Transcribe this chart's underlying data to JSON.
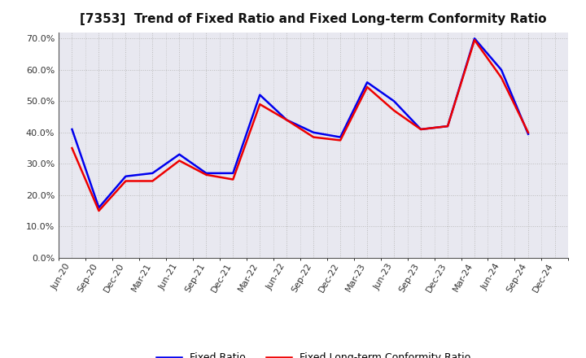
{
  "title": "[7353]  Trend of Fixed Ratio and Fixed Long-term Conformity Ratio",
  "x_labels": [
    "Jun-20",
    "Sep-20",
    "Dec-20",
    "Mar-21",
    "Jun-21",
    "Sep-21",
    "Dec-21",
    "Mar-22",
    "Jun-22",
    "Sep-22",
    "Dec-22",
    "Mar-23",
    "Jun-23",
    "Sep-23",
    "Dec-23",
    "Mar-24",
    "Jun-24",
    "Sep-24",
    "Dec-24"
  ],
  "fixed_ratio": [
    0.41,
    0.16,
    0.26,
    0.27,
    0.33,
    0.27,
    0.27,
    0.52,
    0.44,
    0.4,
    0.385,
    0.56,
    0.5,
    0.41,
    0.42,
    0.7,
    0.6,
    0.395,
    null
  ],
  "fixed_lt_ratio": [
    0.35,
    0.15,
    0.245,
    0.245,
    0.31,
    0.265,
    0.25,
    0.49,
    0.44,
    0.385,
    0.375,
    0.545,
    0.47,
    0.41,
    0.42,
    0.695,
    0.575,
    0.4,
    null
  ],
  "fixed_ratio_color": "#0000EE",
  "fixed_lt_ratio_color": "#EE0000",
  "ylim": [
    0.0,
    0.72
  ],
  "yticks": [
    0.0,
    0.1,
    0.2,
    0.3,
    0.4,
    0.5,
    0.6,
    0.7
  ],
  "plot_bg_color": "#E8E8F0",
  "background_color": "#FFFFFF",
  "grid_color": "#BBBBBB",
  "legend_fixed": "Fixed Ratio",
  "legend_fixed_lt": "Fixed Long-term Conformity Ratio",
  "title_fontsize": 11,
  "tick_fontsize": 8,
  "legend_fontsize": 9
}
